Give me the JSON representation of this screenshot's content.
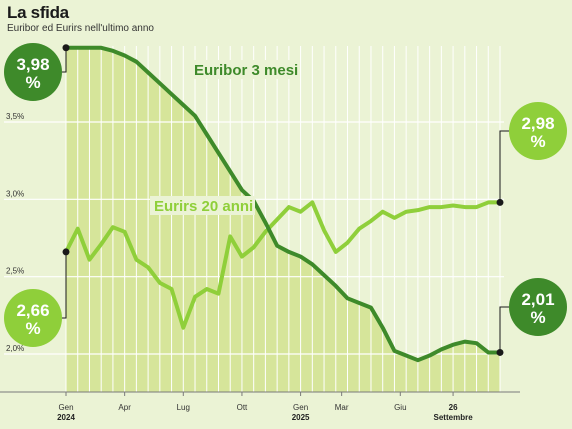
{
  "header": {
    "title": "La sfida",
    "subtitle": "Euribor ed Eurirs nell'ultimo anno"
  },
  "chart_data": {
    "type": "area",
    "title": "La sfida",
    "subtitle": "Euribor ed Eurirs nell'ultimo anno",
    "xlabel": "",
    "ylabel": "",
    "ylim": [
      1.9,
      4.0
    ],
    "y_ticks": [
      2.0,
      2.5,
      3.0,
      3.5
    ],
    "y_tick_labels": [
      "2,0%",
      "2,5%",
      "3,0%",
      "3,5%"
    ],
    "x": [
      0,
      1,
      2,
      3,
      4,
      5,
      6,
      7,
      8,
      9,
      10,
      11,
      12,
      13,
      14,
      15,
      16,
      17,
      18,
      19,
      20,
      21,
      22,
      23,
      24,
      25,
      26,
      27,
      28,
      29,
      30,
      31,
      32,
      33,
      34,
      35,
      36,
      37
    ],
    "x_ticks": [
      {
        "x": 0,
        "label": "Gen",
        "sub": "2024"
      },
      {
        "x": 5,
        "label": "Apr",
        "sub": ""
      },
      {
        "x": 10,
        "label": "Lug",
        "sub": ""
      },
      {
        "x": 15,
        "label": "Ott",
        "sub": ""
      },
      {
        "x": 20,
        "label": "Gen",
        "sub": "2025"
      },
      {
        "x": 23.5,
        "label": "Mar",
        "sub": ""
      },
      {
        "x": 28.5,
        "label": "Giu",
        "sub": ""
      },
      {
        "x": 33,
        "label": "26",
        "sub": "Settembre"
      }
    ],
    "grid": true,
    "series": [
      {
        "name": "Euribor 3 mesi",
        "color": "#3e8a2a",
        "values": [
          3.98,
          3.98,
          3.98,
          3.98,
          3.96,
          3.93,
          3.89,
          3.82,
          3.75,
          3.68,
          3.61,
          3.54,
          3.42,
          3.3,
          3.18,
          3.06,
          2.99,
          2.85,
          2.7,
          2.66,
          2.63,
          2.58,
          2.51,
          2.44,
          2.36,
          2.33,
          2.3,
          2.17,
          2.02,
          1.99,
          1.96,
          1.99,
          2.03,
          2.06,
          2.08,
          2.07,
          2.01,
          2.01
        ],
        "start_label": "3,98 %",
        "end_label": "2,01 %"
      },
      {
        "name": "Eurirs 20 anni",
        "color": "#8fcf3a",
        "values": [
          2.66,
          2.81,
          2.61,
          2.71,
          2.82,
          2.79,
          2.61,
          2.56,
          2.46,
          2.42,
          2.17,
          2.37,
          2.42,
          2.39,
          2.76,
          2.63,
          2.69,
          2.79,
          2.87,
          2.95,
          2.92,
          2.98,
          2.8,
          2.66,
          2.72,
          2.81,
          2.86,
          2.92,
          2.88,
          2.92,
          2.93,
          2.95,
          2.95,
          2.96,
          2.95,
          2.95,
          2.98,
          2.98
        ],
        "start_label": "2,66 %",
        "end_label": "2,98 %"
      }
    ],
    "colors": {
      "background": "#ebf3d5",
      "area_fill": "#d6e59a",
      "grid": "#ffffff",
      "dark_green": "#3e8a2a",
      "light_green": "#8fcf3a",
      "text": "#333333"
    }
  }
}
